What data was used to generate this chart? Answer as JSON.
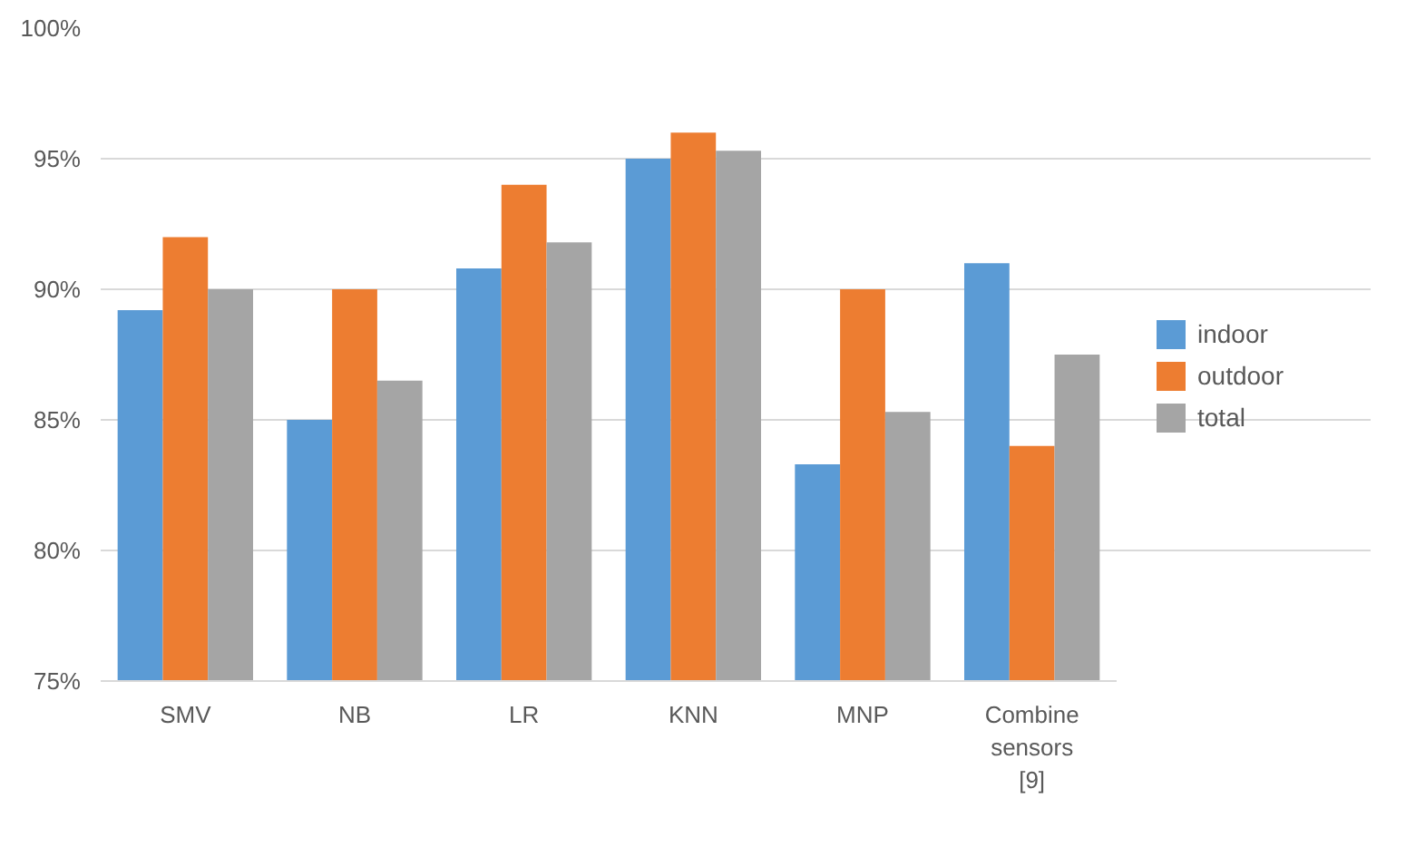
{
  "chart_data": {
    "type": "bar",
    "categories": [
      "SMV",
      "NB",
      "LR",
      "KNN",
      "MNP",
      "Combine sensors [9]"
    ],
    "series": [
      {
        "name": "indoor",
        "color": "#5b9bd5",
        "values": [
          89.2,
          85,
          90.8,
          95,
          83.3,
          91
        ]
      },
      {
        "name": "outdoor",
        "color": "#ed7d31",
        "values": [
          92,
          90,
          94,
          96,
          90,
          84
        ]
      },
      {
        "name": "total",
        "color": "#a5a5a5",
        "values": [
          90,
          86.5,
          91.8,
          95.3,
          85.3,
          87.5
        ]
      }
    ],
    "ylim": [
      75,
      100
    ],
    "yticks": [
      {
        "value": 75,
        "label": "75%"
      },
      {
        "value": 80,
        "label": "80%"
      },
      {
        "value": 85,
        "label": "85%"
      },
      {
        "value": 90,
        "label": "90%"
      },
      {
        "value": 95,
        "label": "95%"
      },
      {
        "value": 100,
        "label": "100%"
      }
    ],
    "grid": "y",
    "legend": "right"
  }
}
